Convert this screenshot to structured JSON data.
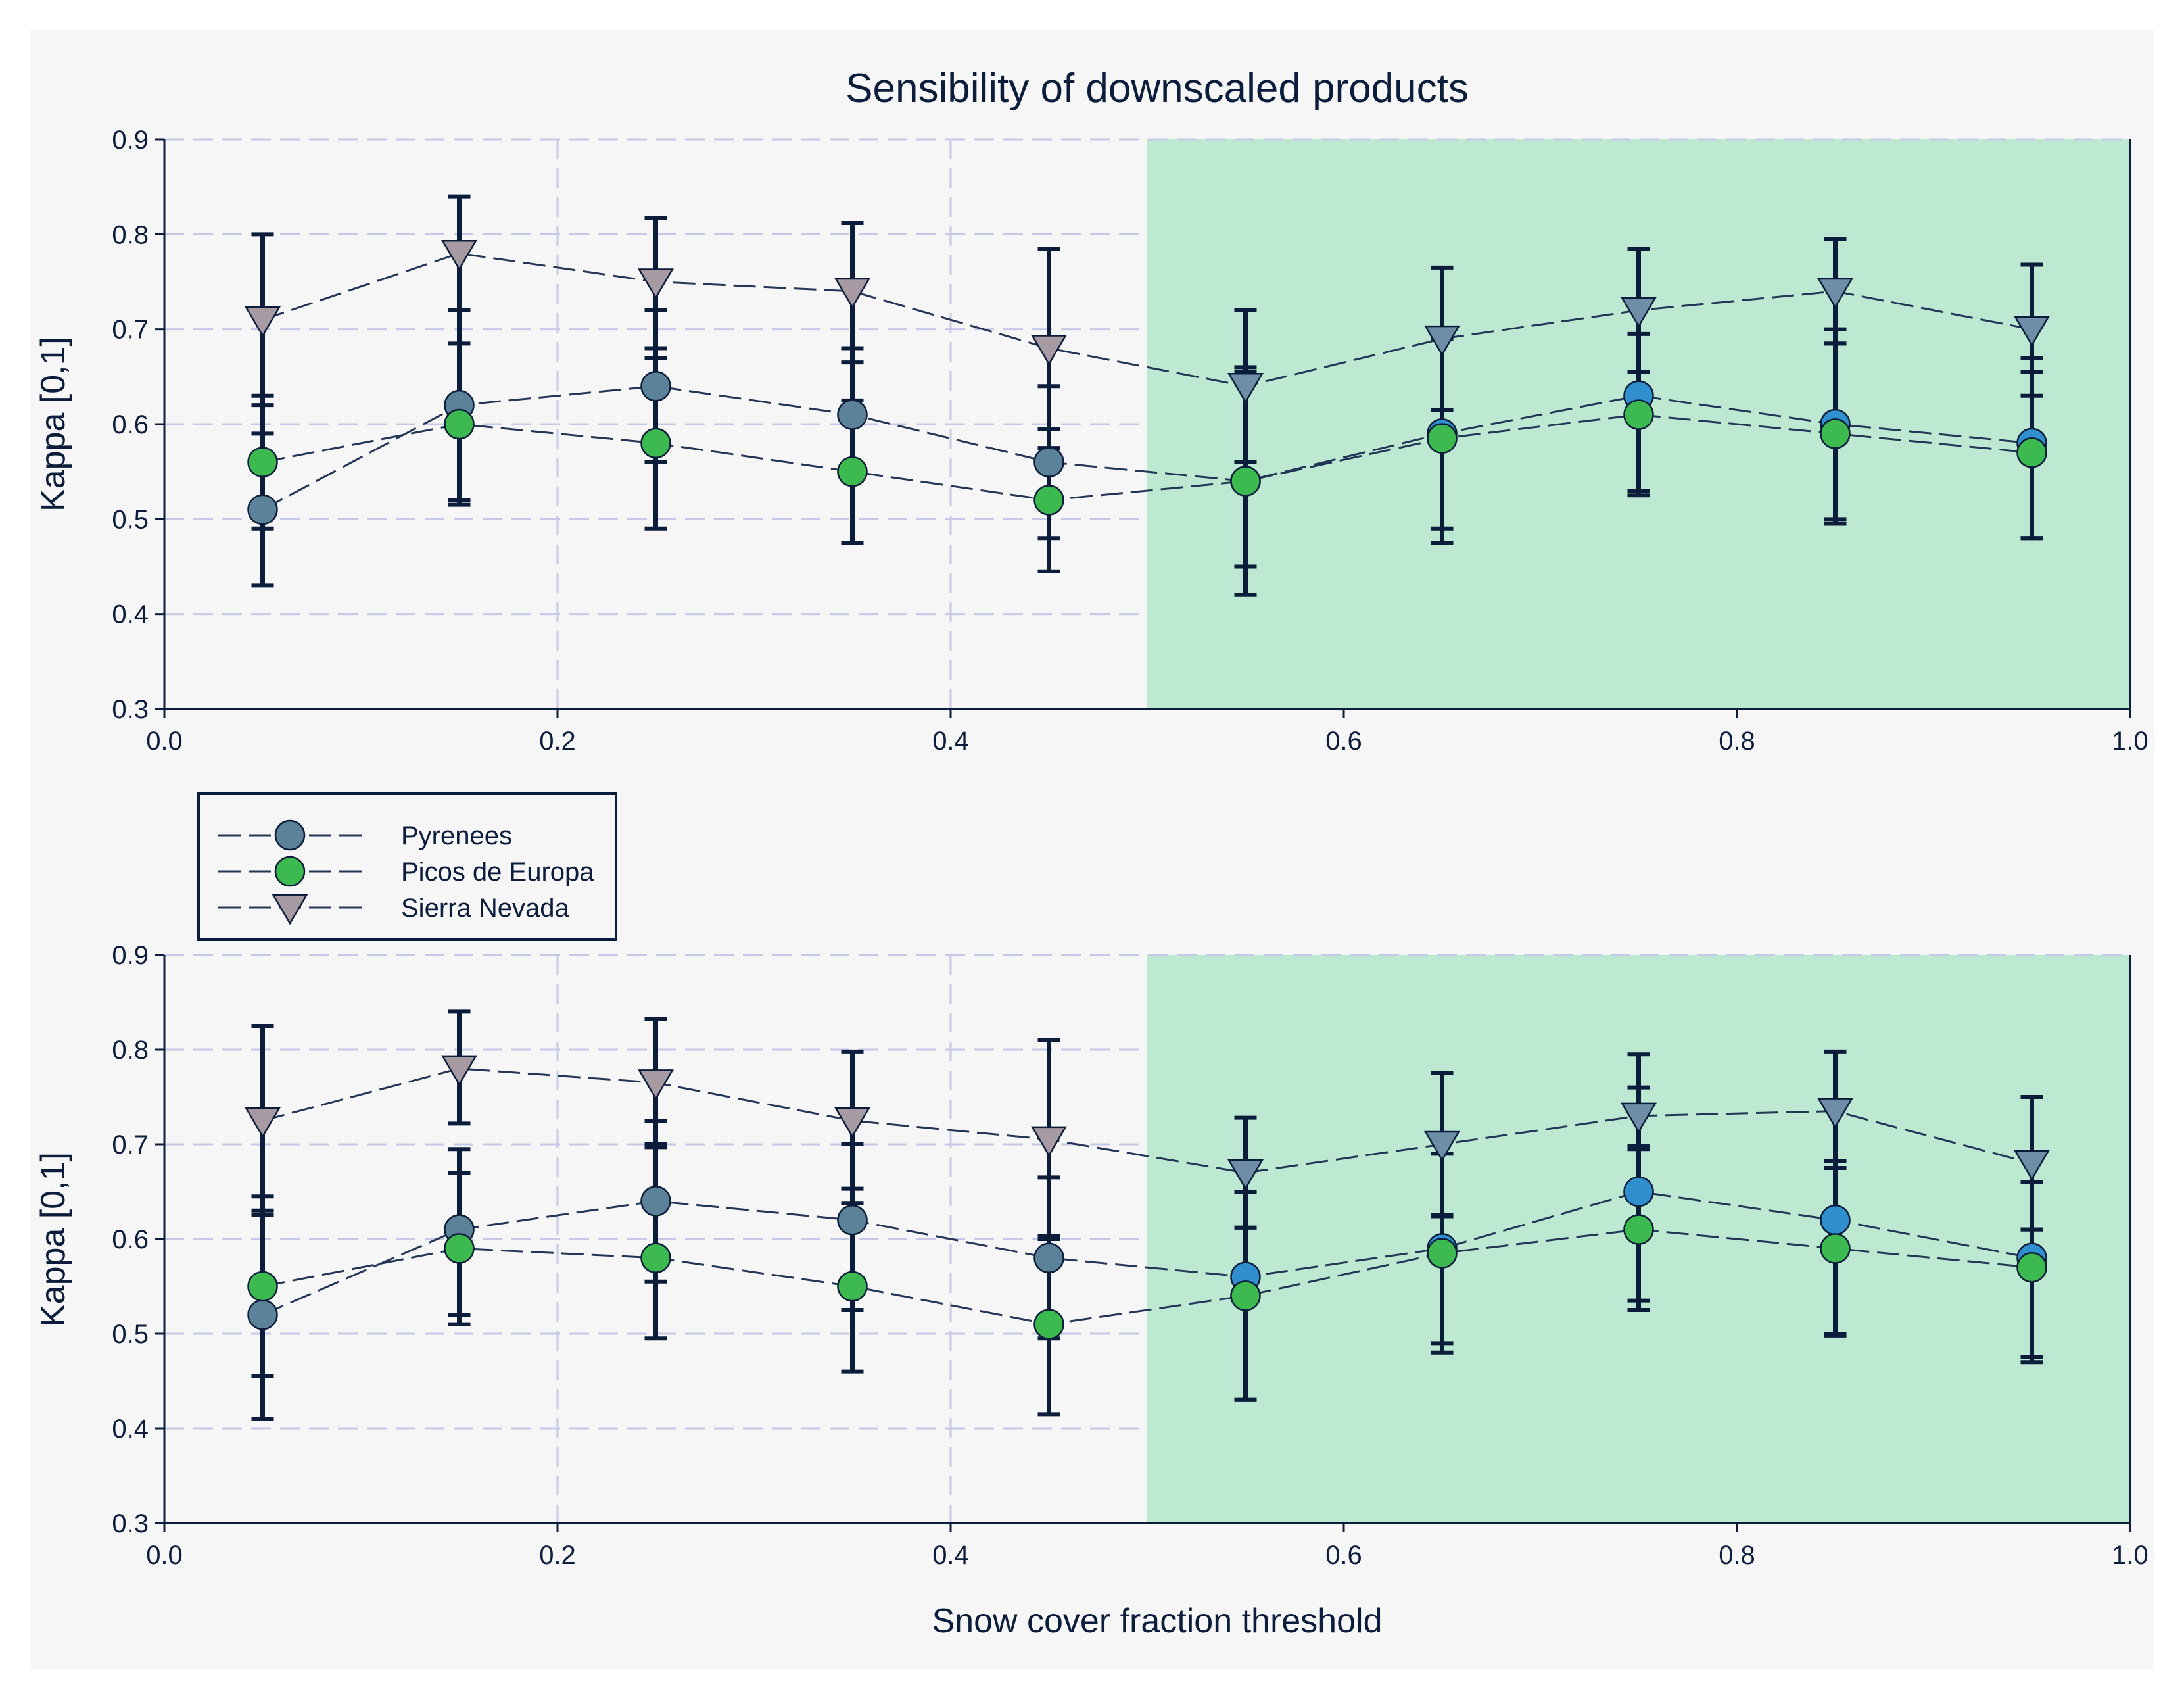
{
  "chart_data": {
    "type": "scatter",
    "title": "Sensibility of downscaled products",
    "xlabel": "Snow cover fraction threshold",
    "ylabel": "Kappa [0,1]",
    "xlim": [
      0.0,
      1.0
    ],
    "ylim": [
      0.3,
      0.9
    ],
    "xticks": [
      "0.0",
      "0.2",
      "0.4",
      "0.6",
      "0.8",
      "1.0"
    ],
    "yticks": [
      "0.3",
      "0.4",
      "0.5",
      "0.6",
      "0.7",
      "0.8",
      "0.9"
    ],
    "highlight_region": [
      0.5,
      1.0
    ],
    "legend": [
      {
        "name": "Pyrenees",
        "marker": "circle",
        "color": "#5b8299"
      },
      {
        "name": "Picos de Europa",
        "marker": "circle",
        "color": "#3dba4f"
      },
      {
        "name": "Sierra Nevada",
        "marker": "triangle-down",
        "color": "#a89aa3"
      }
    ],
    "colors": {
      "background": "#f6f6f6",
      "highlight": "#bde8d2",
      "grid": "#c5c8e6",
      "ink": "#0b1d3a",
      "pyrenees_high": "#2f8fcf",
      "sierra_high": "#6e8ea8"
    },
    "x": [
      0.05,
      0.15,
      0.25,
      0.35,
      0.45,
      0.55,
      0.65,
      0.75,
      0.85,
      0.95
    ],
    "panels": [
      {
        "series": [
          {
            "name": "Pyrenees",
            "values": [
              0.51,
              0.62,
              0.64,
              0.61,
              0.56,
              0.54,
              0.59,
              0.63,
              0.6,
              0.58
            ],
            "err_low": [
              0.43,
              0.52,
              0.56,
              0.54,
              0.48,
              0.45,
              0.49,
              0.53,
              0.5,
              0.48
            ],
            "err_high": [
              0.59,
              0.72,
              0.72,
              0.68,
              0.64,
              0.66,
              0.69,
              0.73,
              0.7,
              0.67
            ]
          },
          {
            "name": "Picos de Europa",
            "values": [
              0.56,
              0.6,
              0.58,
              0.55,
              0.52,
              0.54,
              0.585,
              0.61,
              0.59,
              0.57
            ],
            "err_low": [
              0.49,
              0.515,
              0.49,
              0.475,
              0.445,
              0.42,
              0.475,
              0.525,
              0.495,
              0.48
            ],
            "err_high": [
              0.63,
              0.685,
              0.67,
              0.625,
              0.595,
              0.655,
              0.69,
              0.695,
              0.685,
              0.655
            ]
          },
          {
            "name": "Sierra Nevada",
            "values": [
              0.71,
              0.78,
              0.75,
              0.74,
              0.68,
              0.64,
              0.69,
              0.72,
              0.74,
              0.7
            ],
            "err_low": [
              0.62,
              0.72,
              0.68,
              0.665,
              0.575,
              0.56,
              0.615,
              0.655,
              0.685,
              0.63
            ],
            "err_high": [
              0.8,
              0.84,
              0.817,
              0.812,
              0.785,
              0.72,
              0.765,
              0.785,
              0.795,
              0.768
            ]
          }
        ]
      },
      {
        "series": [
          {
            "name": "Pyrenees",
            "values": [
              0.52,
              0.61,
              0.64,
              0.62,
              0.58,
              0.56,
              0.59,
              0.65,
              0.62,
              0.58
            ],
            "err_low": [
              0.41,
              0.52,
              0.555,
              0.525,
              0.495,
              0.43,
              0.49,
              0.525,
              0.5,
              0.47
            ],
            "err_high": [
              0.63,
              0.695,
              0.725,
              0.7,
              0.665,
              0.65,
              0.69,
              0.76,
              0.74,
              0.66
            ]
          },
          {
            "name": "Picos de Europa",
            "values": [
              0.55,
              0.59,
              0.58,
              0.55,
              0.51,
              0.54,
              0.585,
              0.61,
              0.59,
              0.57
            ],
            "err_low": [
              0.455,
              0.51,
              0.495,
              0.46,
              0.415,
              0.43,
              0.48,
              0.535,
              0.498,
              0.475
            ],
            "err_high": [
              0.645,
              0.67,
              0.697,
              0.653,
              0.6,
              0.612,
              0.624,
              0.695,
              0.682,
              0.61
            ]
          },
          {
            "name": "Sierra Nevada",
            "values": [
              0.725,
              0.78,
              0.765,
              0.725,
              0.705,
              0.67,
              0.7,
              0.73,
              0.735,
              0.68
            ],
            "err_low": [
              0.625,
              0.722,
              0.7,
              0.638,
              0.603,
              0.612,
              0.625,
              0.698,
              0.675,
              0.61
            ],
            "err_high": [
              0.825,
              0.84,
              0.832,
              0.798,
              0.81,
              0.728,
              0.775,
              0.795,
              0.798,
              0.75
            ]
          }
        ]
      }
    ]
  }
}
